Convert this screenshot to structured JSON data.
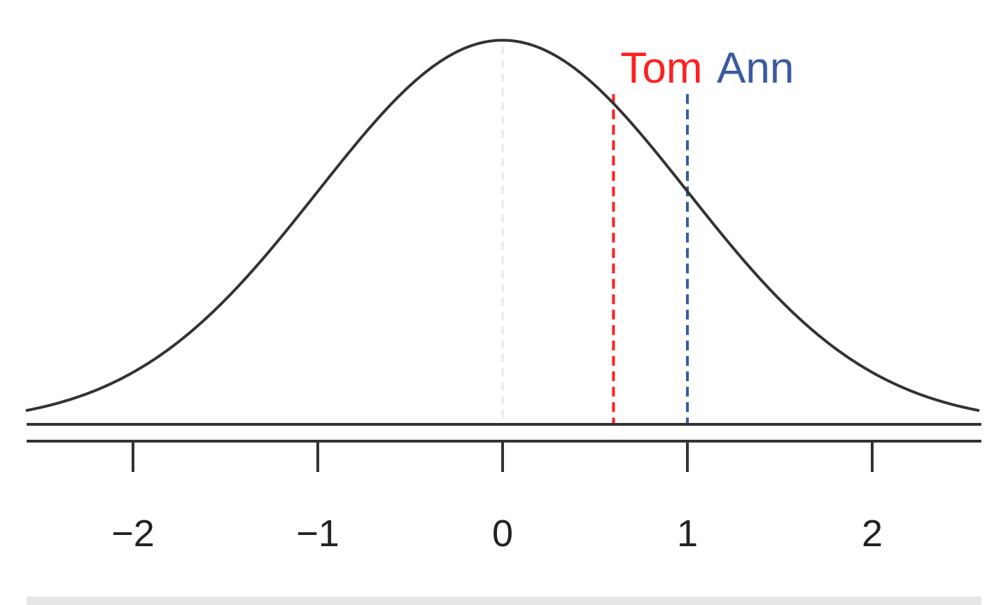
{
  "chart_data": {
    "type": "line",
    "distribution": "standard-normal",
    "xlim": [
      -2.58,
      2.58
    ],
    "ylim": [
      0,
      0.4
    ],
    "x_ticks": [
      -2,
      -1,
      0,
      1,
      2
    ],
    "x_tick_labels": [
      "−2",
      "−1",
      "0",
      "1",
      "2"
    ],
    "mean_reference_line": 0,
    "markers": [
      {
        "label": "Tom",
        "x": 0.6,
        "color": "#ff2020"
      },
      {
        "label": "Ann",
        "x": 1.0,
        "color": "#3a5aa0"
      }
    ],
    "colors": {
      "curve": "#333333",
      "axis": "#333333",
      "mean_line": "#e8e8e8"
    },
    "title": "",
    "xlabel": "",
    "ylabel": ""
  }
}
